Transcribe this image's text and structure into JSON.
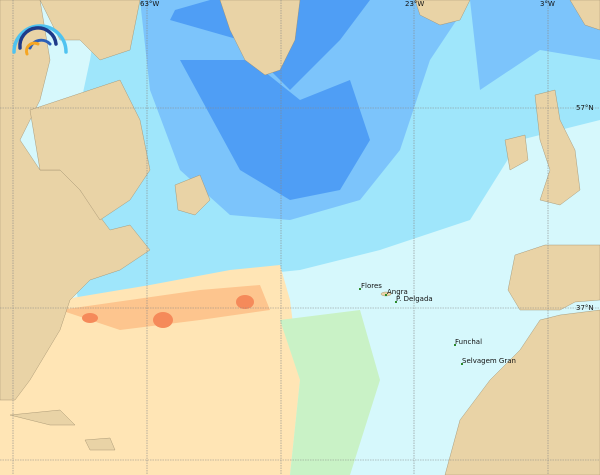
{
  "map": {
    "grid_labels": {
      "lon": [
        "63°W",
        "23°W",
        "3°W"
      ],
      "lat": [
        "57°N",
        "37°N"
      ]
    },
    "places": [
      "Flores",
      "Angra",
      "P. Delgada",
      "Funchal",
      "Selvagem Gran"
    ],
    "colors": {
      "land": "#e9d3a6",
      "deep_blue": "#4f9ef5",
      "mid_blue": "#7cc4fb",
      "light_blue": "#9fe6fb",
      "pale_cyan": "#d6f8fc",
      "green": "#c9f2c6",
      "light_orange": "#ffe5b5",
      "orange": "#fdc58e",
      "red_orange": "#f58a5a"
    },
    "logo": "arc-waves-logo"
  }
}
